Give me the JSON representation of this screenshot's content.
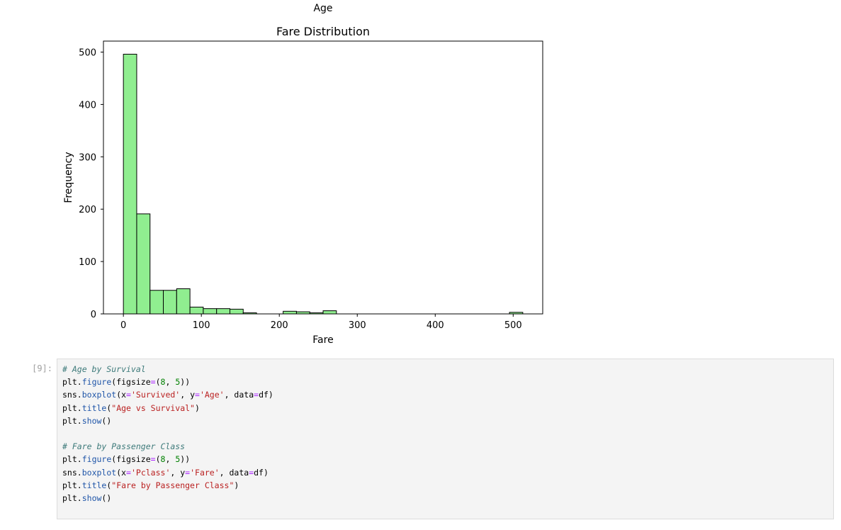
{
  "previous_output": {
    "xlabel": "Age"
  },
  "chart_data": {
    "type": "bar",
    "title": "Fare Distribution",
    "xlabel": "Fare",
    "ylabel": "Frequency",
    "xlim": [
      -25.6,
      537.9
    ],
    "ylim": [
      0,
      521
    ],
    "xticks": [
      0,
      100,
      200,
      300,
      400,
      500
    ],
    "yticks": [
      0,
      100,
      200,
      300,
      400,
      500
    ],
    "grid": false,
    "bar_color": "#90ee90",
    "edge_color": "#000000",
    "bins": [
      {
        "x0": 0.0,
        "x1": 17.08,
        "value": 496
      },
      {
        "x0": 17.08,
        "x1": 34.16,
        "value": 191
      },
      {
        "x0": 34.16,
        "x1": 51.23,
        "value": 45
      },
      {
        "x0": 51.23,
        "x1": 68.31,
        "value": 45
      },
      {
        "x0": 68.31,
        "x1": 85.39,
        "value": 48
      },
      {
        "x0": 85.39,
        "x1": 102.47,
        "value": 13
      },
      {
        "x0": 102.47,
        "x1": 119.55,
        "value": 10
      },
      {
        "x0": 119.55,
        "x1": 136.62,
        "value": 10
      },
      {
        "x0": 136.62,
        "x1": 153.7,
        "value": 9
      },
      {
        "x0": 153.7,
        "x1": 170.78,
        "value": 2
      },
      {
        "x0": 170.78,
        "x1": 187.86,
        "value": 0
      },
      {
        "x0": 187.86,
        "x1": 204.93,
        "value": 0
      },
      {
        "x0": 204.93,
        "x1": 222.01,
        "value": 5
      },
      {
        "x0": 222.01,
        "x1": 239.09,
        "value": 4
      },
      {
        "x0": 239.09,
        "x1": 256.17,
        "value": 2
      },
      {
        "x0": 256.17,
        "x1": 273.25,
        "value": 6
      },
      {
        "x0": 273.25,
        "x1": 290.32,
        "value": 0
      },
      {
        "x0": 290.32,
        "x1": 307.4,
        "value": 0
      },
      {
        "x0": 307.4,
        "x1": 324.48,
        "value": 0
      },
      {
        "x0": 324.48,
        "x1": 341.56,
        "value": 0
      },
      {
        "x0": 341.56,
        "x1": 358.63,
        "value": 0
      },
      {
        "x0": 358.63,
        "x1": 375.71,
        "value": 0
      },
      {
        "x0": 375.71,
        "x1": 392.79,
        "value": 0
      },
      {
        "x0": 392.79,
        "x1": 409.87,
        "value": 0
      },
      {
        "x0": 409.87,
        "x1": 426.95,
        "value": 0
      },
      {
        "x0": 426.95,
        "x1": 444.02,
        "value": 0
      },
      {
        "x0": 444.02,
        "x1": 461.1,
        "value": 0
      },
      {
        "x0": 461.1,
        "x1": 478.18,
        "value": 0
      },
      {
        "x0": 478.18,
        "x1": 495.26,
        "value": 0
      },
      {
        "x0": 495.26,
        "x1": 512.33,
        "value": 3
      }
    ]
  },
  "code_cell": {
    "prompt": "[9]:",
    "lines": [
      [
        {
          "t": "# Age by Survival",
          "c": "comment"
        }
      ],
      [
        {
          "t": "plt",
          "c": "plain"
        },
        {
          "t": ".",
          "c": "plain"
        },
        {
          "t": "figure",
          "c": "func"
        },
        {
          "t": "(figsize",
          "c": "plain"
        },
        {
          "t": "=",
          "c": "op"
        },
        {
          "t": "(",
          "c": "plain"
        },
        {
          "t": "8",
          "c": "num"
        },
        {
          "t": ", ",
          "c": "plain"
        },
        {
          "t": "5",
          "c": "num"
        },
        {
          "t": "))",
          "c": "plain"
        }
      ],
      [
        {
          "t": "sns",
          "c": "plain"
        },
        {
          "t": ".",
          "c": "plain"
        },
        {
          "t": "boxplot",
          "c": "func"
        },
        {
          "t": "(x",
          "c": "plain"
        },
        {
          "t": "=",
          "c": "op"
        },
        {
          "t": "'Survived'",
          "c": "str"
        },
        {
          "t": ", y",
          "c": "plain"
        },
        {
          "t": "=",
          "c": "op"
        },
        {
          "t": "'Age'",
          "c": "str"
        },
        {
          "t": ", data",
          "c": "plain"
        },
        {
          "t": "=",
          "c": "op"
        },
        {
          "t": "df)",
          "c": "plain"
        }
      ],
      [
        {
          "t": "plt",
          "c": "plain"
        },
        {
          "t": ".",
          "c": "plain"
        },
        {
          "t": "title",
          "c": "func"
        },
        {
          "t": "(",
          "c": "plain"
        },
        {
          "t": "\"Age vs Survival\"",
          "c": "str"
        },
        {
          "t": ")",
          "c": "plain"
        }
      ],
      [
        {
          "t": "plt",
          "c": "plain"
        },
        {
          "t": ".",
          "c": "plain"
        },
        {
          "t": "show",
          "c": "func"
        },
        {
          "t": "()",
          "c": "plain"
        }
      ],
      [],
      [
        {
          "t": "# Fare by Passenger Class",
          "c": "comment"
        }
      ],
      [
        {
          "t": "plt",
          "c": "plain"
        },
        {
          "t": ".",
          "c": "plain"
        },
        {
          "t": "figure",
          "c": "func"
        },
        {
          "t": "(figsize",
          "c": "plain"
        },
        {
          "t": "=",
          "c": "op"
        },
        {
          "t": "(",
          "c": "plain"
        },
        {
          "t": "8",
          "c": "num"
        },
        {
          "t": ", ",
          "c": "plain"
        },
        {
          "t": "5",
          "c": "num"
        },
        {
          "t": "))",
          "c": "plain"
        }
      ],
      [
        {
          "t": "sns",
          "c": "plain"
        },
        {
          "t": ".",
          "c": "plain"
        },
        {
          "t": "boxplot",
          "c": "func"
        },
        {
          "t": "(x",
          "c": "plain"
        },
        {
          "t": "=",
          "c": "op"
        },
        {
          "t": "'Pclass'",
          "c": "str"
        },
        {
          "t": ", y",
          "c": "plain"
        },
        {
          "t": "=",
          "c": "op"
        },
        {
          "t": "'Fare'",
          "c": "str"
        },
        {
          "t": ", data",
          "c": "plain"
        },
        {
          "t": "=",
          "c": "op"
        },
        {
          "t": "df)",
          "c": "plain"
        }
      ],
      [
        {
          "t": "plt",
          "c": "plain"
        },
        {
          "t": ".",
          "c": "plain"
        },
        {
          "t": "title",
          "c": "func"
        },
        {
          "t": "(",
          "c": "plain"
        },
        {
          "t": "\"Fare by Passenger Class\"",
          "c": "str"
        },
        {
          "t": ")",
          "c": "plain"
        }
      ],
      [
        {
          "t": "plt",
          "c": "plain"
        },
        {
          "t": ".",
          "c": "plain"
        },
        {
          "t": "show",
          "c": "func"
        },
        {
          "t": "()",
          "c": "plain"
        }
      ]
    ]
  }
}
